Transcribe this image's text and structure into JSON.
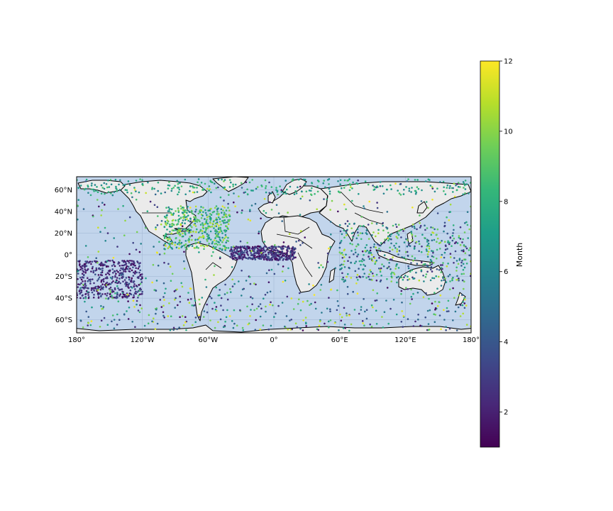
{
  "map": {
    "projection": "PlateCarree",
    "lon_range": [
      -180,
      180
    ],
    "lat_range": [
      -72,
      72
    ],
    "ocean_color": "#c2d5ec",
    "land_color": "#ebebeb",
    "x_ticks": [
      {
        "value": -180,
        "label": "180°"
      },
      {
        "value": -120,
        "label": "120°W"
      },
      {
        "value": -60,
        "label": "60°W"
      },
      {
        "value": 0,
        "label": "0°"
      },
      {
        "value": 60,
        "label": "60°E"
      },
      {
        "value": 120,
        "label": "120°E"
      },
      {
        "value": 180,
        "label": "180°"
      }
    ],
    "y_ticks": [
      {
        "value": 60,
        "label": "60°N"
      },
      {
        "value": 40,
        "label": "40°N"
      },
      {
        "value": 20,
        "label": "20°N"
      },
      {
        "value": 0,
        "label": "0°"
      },
      {
        "value": -20,
        "label": "20°S"
      },
      {
        "value": -40,
        "label": "40°S"
      },
      {
        "value": -60,
        "label": "60°S"
      }
    ]
  },
  "chart_data": {
    "type": "scatter",
    "description_x": "longitude",
    "description_y": "latitude",
    "color_variable": "Month",
    "colormap": "viridis",
    "color_range": [
      1,
      12
    ],
    "clusters": [
      {
        "lon": [
          -100,
          -40
        ],
        "lat": [
          5,
          45
        ],
        "month_range": [
          6,
          11
        ],
        "density": "high"
      },
      {
        "lon": [
          -180,
          -120
        ],
        "lat": [
          -40,
          -5
        ],
        "month_range": [
          1,
          4
        ],
        "density": "high"
      },
      {
        "lon": [
          -40,
          20
        ],
        "lat": [
          -5,
          8
        ],
        "month_range": [
          1,
          4
        ],
        "density": "high"
      },
      {
        "lon": [
          60,
          180
        ],
        "lat": [
          -25,
          30
        ],
        "month_range": [
          2,
          11
        ],
        "density": "high"
      },
      {
        "lon": [
          -180,
          180
        ],
        "lat": [
          55,
          70
        ],
        "month_range": [
          6,
          9
        ],
        "density": "medium"
      },
      {
        "lon": [
          -180,
          180
        ],
        "lat": [
          -70,
          -30
        ],
        "month_range": [
          1,
          12
        ],
        "density": "medium"
      }
    ]
  },
  "colorbar": {
    "label": "Month",
    "min": 1,
    "max": 12,
    "ticks": [
      {
        "value": 2,
        "label": "2"
      },
      {
        "value": 4,
        "label": "4"
      },
      {
        "value": 6,
        "label": "6"
      },
      {
        "value": 8,
        "label": "8"
      },
      {
        "value": 10,
        "label": "10"
      },
      {
        "value": 12,
        "label": "12"
      }
    ],
    "stops": [
      "#440154",
      "#482878",
      "#3e4989",
      "#31688e",
      "#26828e",
      "#1f9e89",
      "#35b779",
      "#6ece58",
      "#b5de2b",
      "#fde725"
    ]
  }
}
